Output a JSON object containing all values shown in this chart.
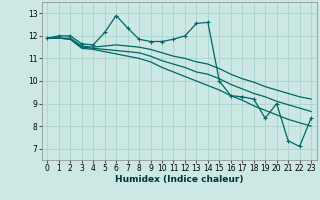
{
  "xlabel": "Humidex (Indice chaleur)",
  "bg_color": "#cce8e4",
  "grid_color": "#aad4cc",
  "line_color": "#006666",
  "ylim": [
    6.5,
    13.5
  ],
  "xlim": [
    -0.5,
    23.5
  ],
  "yticks": [
    7,
    8,
    9,
    10,
    11,
    12,
    13
  ],
  "xticks": [
    0,
    1,
    2,
    3,
    4,
    5,
    6,
    7,
    8,
    9,
    10,
    11,
    12,
    13,
    14,
    15,
    16,
    17,
    18,
    19,
    20,
    21,
    22,
    23
  ],
  "xtick_labels": [
    "0",
    "1",
    "2",
    "3",
    "4",
    "5",
    "6",
    "7",
    "8",
    "9",
    "10",
    "11",
    "12",
    "13",
    "14",
    "15",
    "16",
    "17",
    "18",
    "19",
    "20",
    "21",
    "22",
    "23"
  ],
  "curve1_x": [
    0,
    1,
    2,
    3,
    4,
    5,
    6,
    7,
    8,
    9,
    10,
    11,
    12,
    13,
    14,
    15,
    16,
    17,
    18,
    19,
    20,
    21,
    22,
    23
  ],
  "curve1_y": [
    11.9,
    12.0,
    12.0,
    11.65,
    11.6,
    12.15,
    12.9,
    12.35,
    11.85,
    11.75,
    11.75,
    11.85,
    12.0,
    12.55,
    12.6,
    10.0,
    9.35,
    9.3,
    9.2,
    8.35,
    9.0,
    7.35,
    7.1,
    8.35
  ],
  "curve2_x": [
    0,
    1,
    2,
    3,
    4,
    5,
    6,
    7,
    8,
    9,
    10,
    11,
    12,
    13,
    14,
    15,
    16,
    17,
    18,
    19,
    20,
    21,
    22,
    23
  ],
  "curve2_y": [
    11.9,
    11.9,
    11.9,
    11.55,
    11.5,
    11.55,
    11.6,
    11.55,
    11.5,
    11.4,
    11.25,
    11.1,
    11.0,
    10.85,
    10.75,
    10.55,
    10.3,
    10.1,
    9.95,
    9.75,
    9.6,
    9.45,
    9.3,
    9.2
  ],
  "curve3_x": [
    0,
    1,
    2,
    3,
    4,
    5,
    6,
    7,
    8,
    9,
    10,
    11,
    12,
    13,
    14,
    15,
    16,
    17,
    18,
    19,
    20,
    21,
    22,
    23
  ],
  "curve3_y": [
    11.9,
    11.9,
    11.85,
    11.5,
    11.45,
    11.4,
    11.35,
    11.3,
    11.25,
    11.1,
    10.9,
    10.75,
    10.6,
    10.4,
    10.3,
    10.1,
    9.85,
    9.65,
    9.45,
    9.3,
    9.1,
    8.95,
    8.8,
    8.65
  ],
  "curve4_x": [
    0,
    1,
    2,
    3,
    4,
    5,
    6,
    7,
    8,
    9,
    10,
    11,
    12,
    13,
    14,
    15,
    16,
    17,
    18,
    19,
    20,
    21,
    22,
    23
  ],
  "curve4_y": [
    11.9,
    11.9,
    11.85,
    11.45,
    11.4,
    11.3,
    11.2,
    11.1,
    11.0,
    10.85,
    10.6,
    10.4,
    10.2,
    10.0,
    9.8,
    9.6,
    9.35,
    9.15,
    8.9,
    8.7,
    8.5,
    8.3,
    8.15,
    8.0
  ]
}
